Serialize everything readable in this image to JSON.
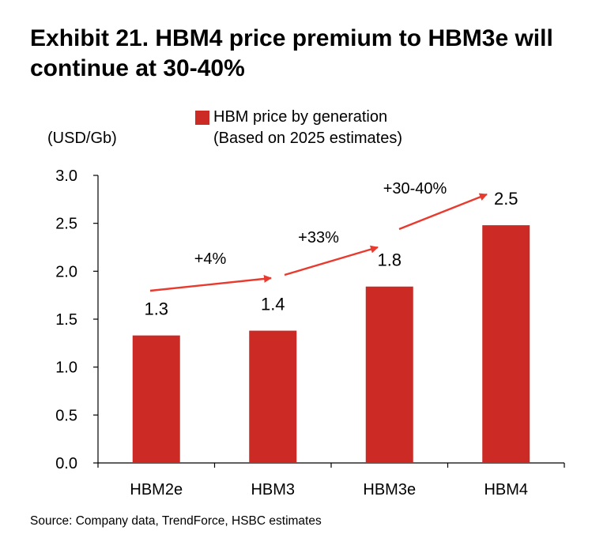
{
  "chart_data": {
    "type": "bar",
    "title": "Exhibit 21. HBM4 price premium to HBM3e will continue at 30-40%",
    "ylabel": "(USD/Gb)",
    "xlabel": "",
    "categories": [
      "HBM2e",
      "HBM3",
      "HBM3e",
      "HBM4"
    ],
    "series": [
      {
        "name": "HBM price by generation",
        "values": [
          1.33,
          1.38,
          1.84,
          2.48
        ]
      }
    ],
    "data_labels": [
      "1.3",
      "1.4",
      "1.8",
      "2.5"
    ],
    "ylim": [
      0.0,
      3.0
    ],
    "yticks": [
      0.0,
      0.5,
      1.0,
      1.5,
      2.0,
      2.5,
      3.0
    ],
    "ytick_labels": [
      "0.0",
      "0.5",
      "1.0",
      "1.5",
      "2.0",
      "2.5",
      "3.0"
    ],
    "legend": {
      "position": "top",
      "line1": "HBM price by generation",
      "line2": "(Based on 2025 estimates)"
    },
    "annotations": [
      {
        "text": "+4%",
        "from": "HBM2e",
        "to": "HBM3"
      },
      {
        "text": "+33%",
        "from": "HBM3",
        "to": "HBM3e"
      },
      {
        "text": "+30-40%",
        "from": "HBM3e",
        "to": "HBM4"
      }
    ],
    "grid": false,
    "colors": {
      "bar": "#CC2A24",
      "arrow": "#E83A2E",
      "axis": "#000000"
    },
    "source": "Source: Company data, TrendForce, HSBC estimates"
  }
}
